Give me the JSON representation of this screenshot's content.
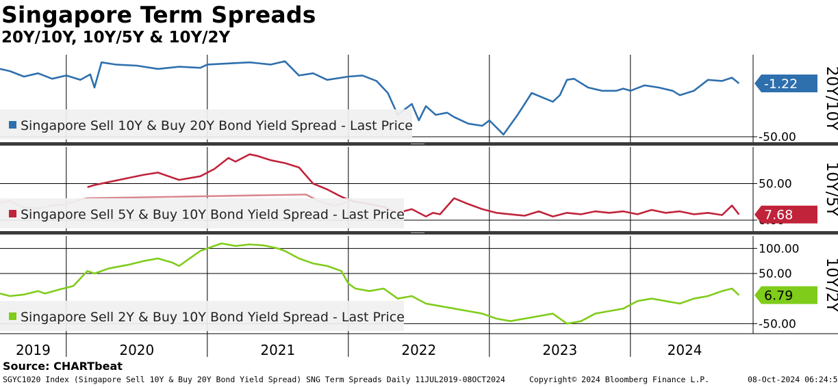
{
  "header": {
    "title": "Singapore Term Spreads",
    "subtitle": "20Y/10Y, 10Y/5Y & 10Y/2Y"
  },
  "footer": {
    "source": "Source: CHARTbeat",
    "ticker_info": "SGYC1020 Index (Singapore Sell 10Y & Buy 20Y Bond Yield Spread) SNG Term Spreads  Daily 11JUL2019-08OCT2024",
    "copyright": "Copyright© 2024 Bloomberg Finance L.P.",
    "timestamp": "08-Oct-2024 06:24:51"
  },
  "colors": {
    "series_20y10y": "#2e6fad",
    "series_10y5y": "#c0233a",
    "series_10y5y_faded": "#d98890",
    "series_10y2y": "#7fcc1a"
  },
  "chart_data": [
    {
      "type": "line",
      "panel_label": "20Y/10Y",
      "legend": "Singapore Sell 10Y & Buy 20Y Bond Yield Spread - Last Price",
      "last_value_label": "-1.22",
      "yticks": [
        -50
      ],
      "ytick_labels": [
        "-50.00"
      ],
      "ylim": [
        -55,
        25
      ],
      "series": [
        {
          "x": [
            2019.53,
            2019.6,
            2019.7,
            2019.8,
            2019.9,
            2020.0,
            2020.1,
            2020.17,
            2020.2,
            2020.25,
            2020.35,
            2020.5,
            2020.65,
            2020.8,
            2020.95,
            2021.0,
            2021.15,
            2021.3,
            2021.45,
            2021.55,
            2021.65,
            2021.75,
            2021.85,
            2021.95,
            2022.0,
            2022.1,
            2022.2,
            2022.28,
            2022.35,
            2022.45,
            2022.5,
            2022.55,
            2022.62,
            2022.7,
            2022.75,
            2022.85,
            2022.95,
            2023.0,
            2023.1,
            2023.2,
            2023.3,
            2023.45,
            2023.5,
            2023.55,
            2023.6,
            2023.7,
            2023.8,
            2023.9,
            2023.95,
            2024.0,
            2024.1,
            2024.2,
            2024.3,
            2024.35,
            2024.45,
            2024.55,
            2024.65,
            2024.72,
            2024.77
          ],
          "y": [
            12,
            10,
            5,
            8,
            3,
            6,
            2,
            7,
            -5,
            18,
            16,
            15,
            12,
            14,
            13,
            16,
            17,
            18,
            16,
            19,
            6,
            8,
            2,
            4,
            5,
            6,
            1,
            -10,
            -30,
            -20,
            -35,
            -22,
            -30,
            -28,
            -32,
            -38,
            -40,
            -35,
            -48,
            -30,
            -10,
            -18,
            -12,
            2,
            3,
            -5,
            -8,
            -8,
            -6,
            -8,
            -3,
            -5,
            -8,
            -12,
            -8,
            2,
            1,
            4,
            -1.22
          ]
        }
      ]
    },
    {
      "type": "line",
      "panel_label": "10Y/5Y",
      "legend": "Singapore Sell 5Y & Buy 10Y Bond Yield Spread - Last Price",
      "last_value_label": "7.68",
      "yticks": [
        50,
        0
      ],
      "ytick_labels": [
        "50.00",
        "0.00"
      ],
      "ylim": [
        -15,
        100
      ],
      "series": [
        {
          "name": "faded",
          "x": [
            2019.53,
            2019.6,
            2019.7,
            2019.8,
            2019.9,
            2020.0,
            2020.1,
            2020.15,
            2021.7,
            2021.8,
            2021.9,
            2021.95,
            2022.0
          ],
          "y": [
            24,
            26,
            17,
            16,
            20,
            22,
            28,
            30,
            35,
            25,
            20,
            22,
            25
          ]
        },
        {
          "x": [
            2020.15,
            2020.2,
            2020.3,
            2020.45,
            2020.55,
            2020.65,
            2020.8,
            2020.95,
            2021.05,
            2021.15,
            2021.2,
            2021.3,
            2021.35,
            2021.45,
            2021.55,
            2021.65,
            2021.75,
            2021.85,
            2021.95,
            2022.0,
            2022.05,
            2022.15,
            2022.25,
            2022.35,
            2022.45,
            2022.55,
            2022.6,
            2022.65,
            2022.75,
            2022.85,
            2022.95,
            2023.05,
            2023.15,
            2023.25,
            2023.35,
            2023.45,
            2023.55,
            2023.65,
            2023.75,
            2023.85,
            2023.95,
            2024.05,
            2024.15,
            2024.25,
            2024.35,
            2024.45,
            2024.55,
            2024.65,
            2024.72,
            2024.77
          ],
          "y": [
            45,
            48,
            52,
            58,
            62,
            65,
            55,
            60,
            70,
            85,
            80,
            90,
            88,
            82,
            78,
            72,
            50,
            42,
            32,
            28,
            25,
            22,
            18,
            10,
            15,
            5,
            10,
            8,
            30,
            22,
            15,
            10,
            8,
            6,
            12,
            5,
            10,
            8,
            12,
            10,
            12,
            8,
            14,
            10,
            12,
            8,
            10,
            7,
            20,
            7.68
          ]
        }
      ]
    },
    {
      "type": "line",
      "panel_label": "10Y/2Y",
      "legend": "Singapore Sell 2Y & Buy 10Y Bond Yield Spread - Last Price",
      "last_value_label": "6.79",
      "yticks": [
        100,
        50,
        -50
      ],
      "ytick_labels": [
        "100.00",
        "50.00",
        "-50.00"
      ],
      "ylim": [
        -70,
        125
      ],
      "series": [
        {
          "x": [
            2019.53,
            2019.6,
            2019.7,
            2019.8,
            2019.85,
            2019.95,
            2020.05,
            2020.15,
            2020.2,
            2020.3,
            2020.45,
            2020.55,
            2020.65,
            2020.75,
            2020.8,
            2020.95,
            2021.0,
            2021.1,
            2021.2,
            2021.3,
            2021.4,
            2021.5,
            2021.55,
            2021.65,
            2021.75,
            2021.85,
            2021.95,
            2022.0,
            2022.05,
            2022.15,
            2022.25,
            2022.35,
            2022.45,
            2022.55,
            2022.65,
            2022.75,
            2022.85,
            2022.95,
            2023.05,
            2023.15,
            2023.25,
            2023.35,
            2023.45,
            2023.55,
            2023.65,
            2023.75,
            2023.85,
            2023.95,
            2024.05,
            2024.15,
            2024.25,
            2024.35,
            2024.45,
            2024.55,
            2024.65,
            2024.72,
            2024.77
          ],
          "y": [
            10,
            5,
            8,
            15,
            10,
            18,
            25,
            55,
            50,
            60,
            68,
            75,
            80,
            72,
            65,
            95,
            100,
            110,
            105,
            108,
            106,
            100,
            95,
            80,
            70,
            65,
            55,
            30,
            20,
            15,
            20,
            0,
            5,
            -10,
            -15,
            -20,
            -25,
            -30,
            -40,
            -45,
            -40,
            -35,
            -30,
            -50,
            -45,
            -30,
            -25,
            -20,
            -5,
            0,
            -5,
            -10,
            0,
            5,
            15,
            20,
            6.79
          ]
        }
      ]
    }
  ],
  "x_axis": {
    "tick_labels": [
      "2019",
      "2020",
      "2021",
      "2022",
      "2023",
      "2024"
    ],
    "xlim": [
      2019.53,
      2024.87
    ]
  }
}
